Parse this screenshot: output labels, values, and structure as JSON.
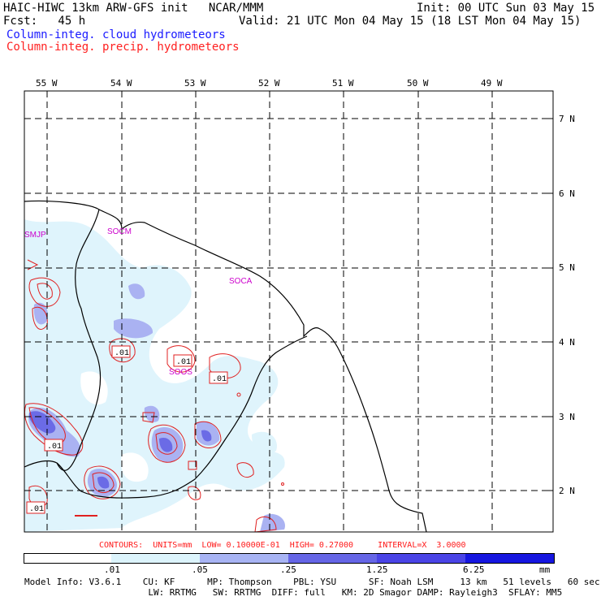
{
  "header": {
    "line1_left": "HAIC-HIWC 13km ARW-GFS init   NCAR/MMM",
    "line1_right": "Init: 00 UTC Sun 03 May 15",
    "line2_left": "Fcst:   45 h",
    "line2_right": "Valid: 21 UTC Mon 04 May 15 (18 LST Mon 04 May 15)",
    "field_cloud": "Column-integ. cloud hydrometeors",
    "field_precip": "Column-integ. precip. hydrometeors"
  },
  "map": {
    "longitude_labels": [
      "55 W",
      "54 W",
      "53 W",
      "52 W",
      "51 W",
      "50 W",
      "49 W"
    ],
    "latitude_labels": [
      "7 N",
      "6 N",
      "5 N",
      "4 N",
      "3 N",
      "2 N"
    ],
    "stations": [
      "SMJP",
      "SOCM",
      "SOCA",
      "SOOS"
    ],
    "contour_labels": [
      ".01",
      ".01",
      ".01",
      ".01",
      ".01"
    ],
    "colors": {
      "cloud_contour": "#1a1aff",
      "precip_contour": "#e02020",
      "station": "#cc00cc",
      "shade1": "#dff4fc",
      "shade2": "#aab2f2",
      "shade3": "#6b6be6"
    }
  },
  "contours_line": "CONTOURS:  UNITS=mm  LOW= 0.10000E-01  HIGH= 0.27000     INTERVAL=X  3.0000",
  "colorbar": {
    "ticks": [
      ".01",
      ".05",
      ".25",
      "1.25",
      "6.25",
      "mm"
    ],
    "colors": [
      "#ffffff",
      "#dcf4fc",
      "#a8b4f4",
      "#6666e6",
      "#4a44e6",
      "#1616e0"
    ]
  },
  "model_info": {
    "line1": "Model Info: V3.6.1    CU: KF      MP: Thompson    PBL: YSU      SF: Noah LSM     13 km   51 levels   60 sec",
    "line2": "                       LW: RRTMG   SW: RRTMG  DIFF: full   KM: 2D Smagor DAMP: Rayleigh3  SFLAY: MM5"
  }
}
